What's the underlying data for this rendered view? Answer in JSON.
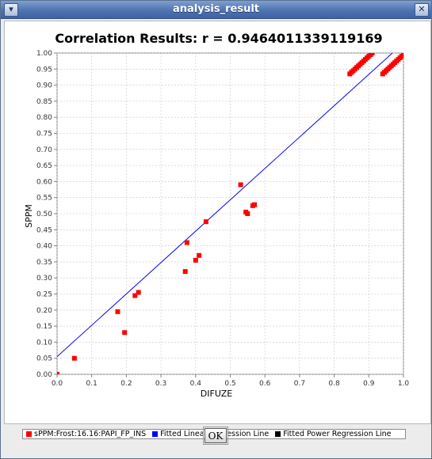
{
  "window": {
    "title": "analysis_result",
    "close_glyph": "✕",
    "menu_glyph": "▾"
  },
  "ok_label": "OK",
  "legend": [
    {
      "label": "sPPM:Frost:16.16:PAPI_FP_INS",
      "color": "#ff0000"
    },
    {
      "label": "Fitted Linear Regression Line",
      "color": "#0000ff"
    },
    {
      "label": "Fitted Power Regression Line",
      "color": "#000000"
    }
  ],
  "chart_data": {
    "type": "scatter",
    "title": "Correlation Results: r = 0.9464011339119169",
    "xlabel": "DIFUZE",
    "ylabel": "SPPM",
    "xlim": [
      0.0,
      1.0
    ],
    "ylim": [
      0.0,
      1.0
    ],
    "grid": true,
    "legend_position": "bottom",
    "x_ticks": [
      "0.0",
      "0.1",
      "0.2",
      "0.3",
      "0.4",
      "0.5",
      "0.6",
      "0.7",
      "0.8",
      "0.9",
      "1.0"
    ],
    "y_ticks": [
      "0.00",
      "0.05",
      "0.10",
      "0.15",
      "0.20",
      "0.25",
      "0.30",
      "0.35",
      "0.40",
      "0.45",
      "0.50",
      "0.55",
      "0.60",
      "0.65",
      "0.70",
      "0.75",
      "0.80",
      "0.85",
      "0.90",
      "0.95",
      "1.00"
    ],
    "series": [
      {
        "name": "sPPM:Frost:16.16:PAPI_FP_INS",
        "color": "#ff0000",
        "points": [
          [
            0.0,
            0.0
          ],
          [
            0.05,
            0.05
          ],
          [
            0.175,
            0.195
          ],
          [
            0.195,
            0.13
          ],
          [
            0.225,
            0.245
          ],
          [
            0.235,
            0.255
          ],
          [
            0.37,
            0.32
          ],
          [
            0.375,
            0.41
          ],
          [
            0.4,
            0.355
          ],
          [
            0.41,
            0.37
          ],
          [
            0.43,
            0.475
          ],
          [
            0.53,
            0.59
          ],
          [
            0.545,
            0.505
          ],
          [
            0.55,
            0.5
          ],
          [
            0.565,
            0.525
          ],
          [
            0.57,
            0.528
          ],
          [
            0.845,
            0.935
          ],
          [
            0.85,
            0.94
          ],
          [
            0.855,
            0.945
          ],
          [
            0.86,
            0.95
          ],
          [
            0.865,
            0.955
          ],
          [
            0.87,
            0.96
          ],
          [
            0.875,
            0.965
          ],
          [
            0.88,
            0.97
          ],
          [
            0.885,
            0.975
          ],
          [
            0.89,
            0.98
          ],
          [
            0.895,
            0.985
          ],
          [
            0.9,
            0.99
          ],
          [
            0.905,
            0.995
          ],
          [
            0.91,
            1.0
          ],
          [
            0.94,
            0.935
          ],
          [
            0.945,
            0.94
          ],
          [
            0.95,
            0.945
          ],
          [
            0.955,
            0.95
          ],
          [
            0.96,
            0.955
          ],
          [
            0.965,
            0.96
          ],
          [
            0.97,
            0.965
          ],
          [
            0.975,
            0.97
          ],
          [
            0.98,
            0.975
          ],
          [
            0.985,
            0.98
          ],
          [
            0.99,
            0.985
          ],
          [
            0.995,
            0.99
          ],
          [
            1.0,
            0.995
          ]
        ]
      },
      {
        "name": "Fitted Linear Regression Line",
        "color": "#0000ff",
        "line": [
          [
            0.0,
            0.055
          ],
          [
            0.968,
            1.0
          ]
        ]
      }
    ]
  }
}
